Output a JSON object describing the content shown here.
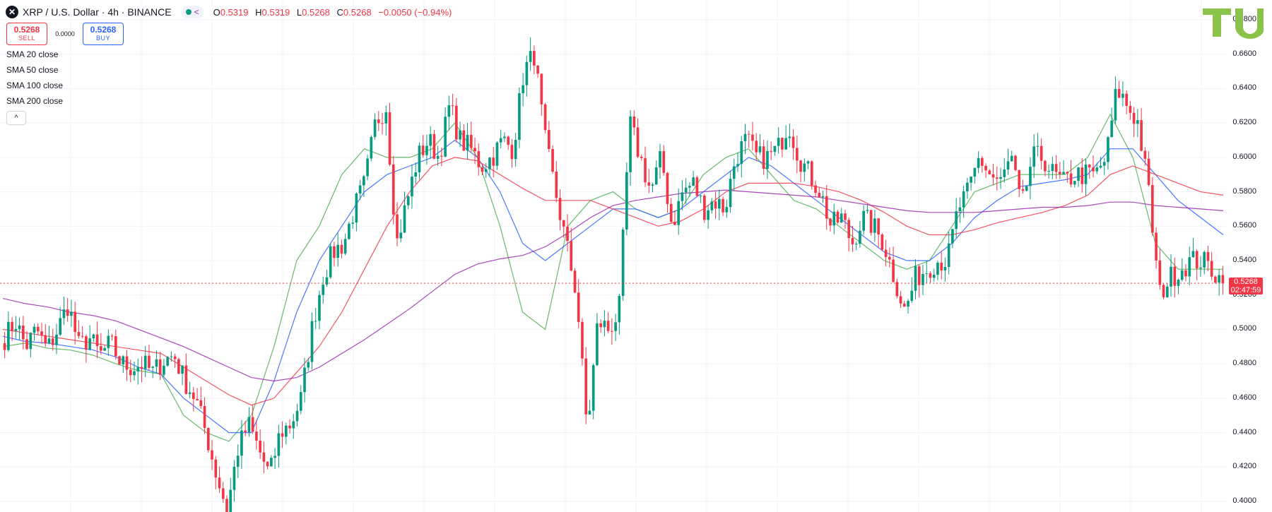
{
  "header": {
    "symbol": "XRP / U.S. Dollar · 4h · BINANCE",
    "logo_glyph": "✕",
    "ohlc": {
      "o_label": "O",
      "o": "0.5319",
      "h_label": "H",
      "h": "0.5319",
      "l_label": "L",
      "l": "0.5268",
      "c_label": "C",
      "c": "0.5268",
      "change": "−0.0050 (−0.94%)"
    }
  },
  "trade": {
    "sell_price": "0.5268",
    "sell_label": "SELL",
    "spread": "0.0000",
    "buy_price": "0.5268",
    "buy_label": "BUY"
  },
  "indicators": [
    "SMA 20 close",
    "SMA 50 close",
    "SMA 100 close",
    "SMA 200 close"
  ],
  "collapse_glyph": "^",
  "price_axis": {
    "labels": [
      "0.6800",
      "0.6600",
      "0.6400",
      "0.6200",
      "0.6000",
      "0.5800",
      "0.5600",
      "0.5400",
      "0.5200",
      "0.5000",
      "0.4800",
      "0.4600",
      "0.4400",
      "0.4200",
      "0.4000"
    ],
    "current_price": "0.5268",
    "countdown": "02:47:59"
  },
  "colors": {
    "up": "#089981",
    "down": "#f23645",
    "sma20": "#4caf50",
    "sma50": "#2962ff",
    "sma100": "#f23645",
    "sma200": "#9c27b0",
    "logo_green": "#8bc34a"
  },
  "logo": {
    "text": "TU"
  },
  "chart_data": {
    "type": "line",
    "timeframe": "4h",
    "ylim": [
      0.4,
      0.68
    ],
    "series": [
      {
        "name": "SMA 20 close",
        "values": [
          0.49,
          0.492,
          0.489,
          0.488,
          0.485,
          0.48,
          0.476,
          0.474,
          0.45,
          0.44,
          0.435,
          0.45,
          0.49,
          0.54,
          0.56,
          0.59,
          0.605,
          0.6,
          0.6,
          0.605,
          0.62,
          0.6,
          0.56,
          0.51,
          0.5,
          0.56,
          0.575,
          0.58,
          0.57,
          0.565,
          0.57,
          0.59,
          0.6,
          0.605,
          0.59,
          0.575,
          0.57,
          0.56,
          0.55,
          0.54,
          0.535,
          0.54,
          0.56,
          0.58,
          0.585,
          0.59,
          0.59,
          0.59,
          0.6,
          0.625,
          0.6,
          0.55,
          0.535,
          0.535,
          0.535
        ]
      },
      {
        "name": "SMA 50 close",
        "values": [
          0.496,
          0.493,
          0.492,
          0.49,
          0.488,
          0.484,
          0.478,
          0.474,
          0.46,
          0.45,
          0.44,
          0.44,
          0.47,
          0.51,
          0.54,
          0.56,
          0.58,
          0.59,
          0.595,
          0.6,
          0.61,
          0.6,
          0.58,
          0.55,
          0.54,
          0.55,
          0.56,
          0.57,
          0.57,
          0.565,
          0.57,
          0.58,
          0.59,
          0.6,
          0.595,
          0.585,
          0.575,
          0.565,
          0.555,
          0.545,
          0.54,
          0.54,
          0.55,
          0.565,
          0.575,
          0.583,
          0.585,
          0.587,
          0.59,
          0.605,
          0.605,
          0.59,
          0.575,
          0.565,
          0.555
        ]
      },
      {
        "name": "SMA 100 close",
        "values": [
          0.5,
          0.498,
          0.496,
          0.494,
          0.492,
          0.49,
          0.488,
          0.486,
          0.478,
          0.47,
          0.462,
          0.456,
          0.46,
          0.475,
          0.49,
          0.51,
          0.535,
          0.56,
          0.58,
          0.595,
          0.6,
          0.598,
          0.59,
          0.582,
          0.575,
          0.575,
          0.575,
          0.57,
          0.565,
          0.56,
          0.563,
          0.57,
          0.58,
          0.585,
          0.585,
          0.585,
          0.583,
          0.58,
          0.575,
          0.568,
          0.56,
          0.555,
          0.555,
          0.558,
          0.562,
          0.565,
          0.568,
          0.572,
          0.578,
          0.59,
          0.595,
          0.59,
          0.585,
          0.58,
          0.578
        ]
      },
      {
        "name": "SMA 200 close",
        "values": [
          0.518,
          0.515,
          0.513,
          0.51,
          0.508,
          0.505,
          0.5,
          0.495,
          0.49,
          0.484,
          0.478,
          0.472,
          0.47,
          0.472,
          0.478,
          0.486,
          0.494,
          0.503,
          0.512,
          0.522,
          0.532,
          0.538,
          0.541,
          0.543,
          0.548,
          0.556,
          0.565,
          0.572,
          0.575,
          0.577,
          0.579,
          0.58,
          0.581,
          0.58,
          0.579,
          0.578,
          0.577,
          0.575,
          0.573,
          0.571,
          0.569,
          0.568,
          0.568,
          0.568,
          0.569,
          0.57,
          0.571,
          0.571,
          0.572,
          0.574,
          0.574,
          0.572,
          0.571,
          0.57,
          0.569
        ]
      }
    ],
    "candle_path": [
      0.495,
      0.505,
      0.49,
      0.5,
      0.488,
      0.5,
      0.515,
      0.49,
      0.495,
      0.485,
      0.492,
      0.48,
      0.478,
      0.48,
      0.475,
      0.482,
      0.485,
      0.47,
      0.46,
      0.44,
      0.415,
      0.395,
      0.43,
      0.445,
      0.43,
      0.415,
      0.44,
      0.445,
      0.46,
      0.5,
      0.53,
      0.545,
      0.55,
      0.57,
      0.585,
      0.62,
      0.63,
      0.55,
      0.575,
      0.6,
      0.61,
      0.6,
      0.63,
      0.61,
      0.605,
      0.595,
      0.6,
      0.61,
      0.605,
      0.65,
      0.66,
      0.61,
      0.58,
      0.55,
      0.52,
      0.44,
      0.505,
      0.5,
      0.51,
      0.62,
      0.6,
      0.58,
      0.6,
      0.56,
      0.58,
      0.585,
      0.57,
      0.575,
      0.57,
      0.6,
      0.61,
      0.6,
      0.6,
      0.605,
      0.62,
      0.6,
      0.59,
      0.58,
      0.56,
      0.565,
      0.55,
      0.565,
      0.56,
      0.55,
      0.53,
      0.51,
      0.53,
      0.535,
      0.54,
      0.54,
      0.57,
      0.58,
      0.6,
      0.59,
      0.585,
      0.6,
      0.57,
      0.6,
      0.6,
      0.59,
      0.585,
      0.59,
      0.59,
      0.59,
      0.6,
      0.64,
      0.63,
      0.62,
      0.58,
      0.52,
      0.53,
      0.535,
      0.54,
      0.54,
      0.535,
      0.527
    ]
  }
}
